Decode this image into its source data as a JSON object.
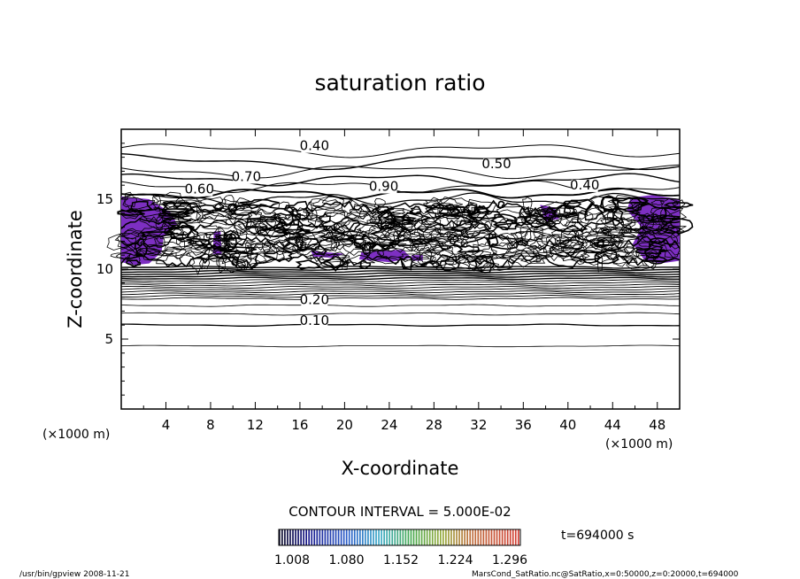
{
  "chart_data": {
    "type": "contour",
    "title": "saturation ratio",
    "xlabel": "X-coordinate",
    "ylabel": "Z-coordinate",
    "x_unit": "(×1000 m)",
    "y_unit": "(×1000 m)",
    "xlim": [
      0,
      50
    ],
    "ylim": [
      0,
      20
    ],
    "x_ticks": [
      "4",
      "8",
      "12",
      "16",
      "20",
      "24",
      "28",
      "32",
      "36",
      "40",
      "44",
      "48"
    ],
    "y_ticks": [
      "5",
      "10",
      "15"
    ],
    "contour_labels": [
      "0.40",
      "0.50",
      "0.70",
      "0.60",
      "0.90",
      "0.40",
      "0.20",
      "0.10"
    ],
    "contour_interval": "CONTOUR INTERVAL = 5.000E-02",
    "time_label": "t=694000 s",
    "colorbar_ticks": [
      "1.008",
      "1.080",
      "1.152",
      "1.224",
      "1.296"
    ],
    "colorbar_range": [
      1.008,
      1.296
    ],
    "shading_color": "#7d2fc2",
    "footer_left": "/usr/bin/gpview  2008-11-21",
    "footer_right": "MarsCond_SatRatio.nc@SatRatio,x=0:50000,z=0:20000,t=694000"
  }
}
